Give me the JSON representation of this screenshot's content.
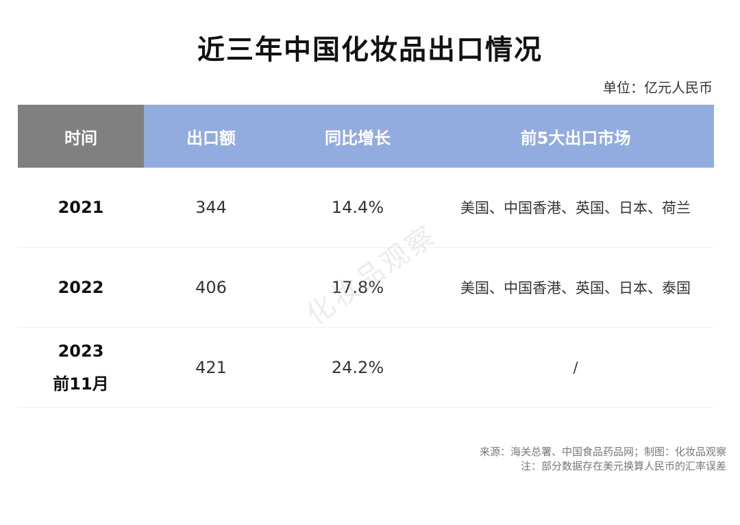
{
  "title": "近三年中国化妆品出口情况",
  "unit": "单位：亿元人民币",
  "table": {
    "headers": {
      "time": "时间",
      "export": "出口额",
      "growth": "同比增长",
      "markets": "前5大出口市场"
    },
    "rows": [
      {
        "year_line1": "2021",
        "year_line2": "",
        "export": "344",
        "growth": "14.4%",
        "markets": "美国、中国香港、英国、日本、荷兰"
      },
      {
        "year_line1": "2022",
        "year_line2": "",
        "export": "406",
        "growth": "17.8%",
        "markets": "美国、中国香港、英国、日本、泰国"
      },
      {
        "year_line1": "2023",
        "year_line2": "前11月",
        "export": "421",
        "growth": "24.2%",
        "markets": "/"
      }
    ]
  },
  "watermark": "化妆品观察",
  "footer": {
    "source": "来源：海关总署、中国食品药品网；制图：化妆品观察",
    "note": "注：部分数据存在美元换算人民币的汇率误差"
  },
  "colors": {
    "header_time_bg": "#808080",
    "header_bg": "#93ACDF"
  }
}
